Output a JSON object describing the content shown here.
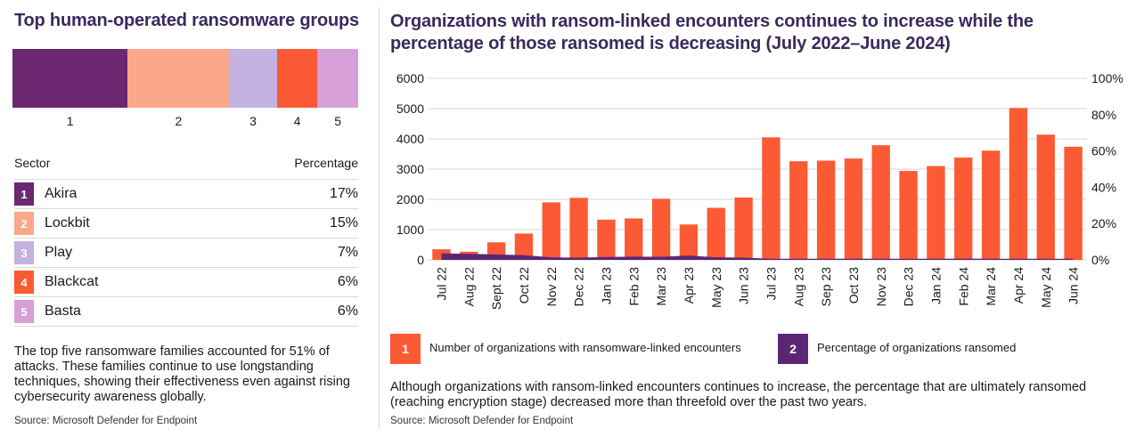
{
  "left": {
    "title": "Top human-operated ransomware groups",
    "table_header": {
      "sector": "Sector",
      "percentage": "Percentage"
    },
    "description": "The top five ransomware families accounted for 51% of attacks. These families continue to use longstanding techniques, showing their effectiveness even against rising cybersecurity awareness globally.",
    "source": "Source: Microsoft Defender for Endpoint"
  },
  "right": {
    "title": "Organizations with ransom-linked encounters continues to increase while the percentage of those ransomed is decreasing (July 2022–June 2024)",
    "description": "Although organizations with ransom-linked encounters continues to increase, the percentage that are ultimately ransomed (reaching encryption stage) decreased more than threefold over the past two years.",
    "source": "Source: Microsoft Defender for Endpoint"
  },
  "colors": {
    "akira": "#6b2770",
    "lockbit": "#fba78a",
    "play": "#c4b2e0",
    "blackcat": "#fb5a34",
    "basta": "#d69fd8",
    "bar": "#fb5a34",
    "area": "#5c2675",
    "title": "#3a2a5c"
  },
  "chart_data": [
    {
      "type": "bar",
      "stacked": true,
      "title": "Top human-operated ransomware groups",
      "categories": [
        "1",
        "2",
        "3",
        "4",
        "5"
      ],
      "series": [
        {
          "name": "Akira",
          "rank": "1",
          "value": 17,
          "display": "17%",
          "color": "#6b2770"
        },
        {
          "name": "Lockbit",
          "rank": "2",
          "value": 15,
          "display": "15%",
          "color": "#fba78a"
        },
        {
          "name": "Play",
          "rank": "3",
          "value": 7,
          "display": "7%",
          "color": "#c4b2e0"
        },
        {
          "name": "Blackcat",
          "rank": "4",
          "value": 6,
          "display": "6%",
          "color": "#fb5a34"
        },
        {
          "name": "Basta",
          "rank": "5",
          "value": 6,
          "display": "6%",
          "color": "#d69fd8"
        }
      ]
    },
    {
      "type": "bar",
      "title": "Organizations with ransom-linked encounters continues to increase while the percentage of those ransomed is decreasing (July 2022–June 2024)",
      "categories": [
        "Jul 22",
        "Aug 22",
        "Sept 22",
        "Oct 22",
        "Nov 22",
        "Dec 22",
        "Jan 23",
        "Feb 23",
        "Mar 23",
        "Apr 23",
        "May 23",
        "Jun 23",
        "Jul 23",
        "Aug 23",
        "Sep 23",
        "Oct 23",
        "Nov 23",
        "Dec 23",
        "Jan 24",
        "Feb 24",
        "Mar 24",
        "Apr 24",
        "May 24",
        "Jun 24"
      ],
      "y_left": {
        "ylim": [
          0,
          6000
        ],
        "ticks": [
          0,
          1000,
          2000,
          3000,
          4000,
          5000,
          6000
        ],
        "tick_labels": [
          "0",
          "1000",
          "2000",
          "3000",
          "4000",
          "5000",
          "6000"
        ]
      },
      "y_right": {
        "ylim": [
          0,
          100
        ],
        "ticks": [
          0,
          20,
          40,
          60,
          80,
          100
        ],
        "tick_labels": [
          "0%",
          "20%",
          "40%",
          "60%",
          "80%",
          "100%"
        ]
      },
      "series": [
        {
          "name": "Number of organizations with ransomware-linked encounters",
          "legend_number": "1",
          "type": "bar",
          "axis": "left",
          "color": "#fb5a34",
          "values": [
            350,
            270,
            580,
            870,
            1900,
            2050,
            1330,
            1370,
            2020,
            1170,
            1720,
            2060,
            4050,
            3260,
            3280,
            3350,
            3790,
            2940,
            3100,
            3380,
            3610,
            5020,
            4140,
            3740
          ]
        },
        {
          "name": "Percentage of organizations ransomed",
          "legend_number": "2",
          "type": "area",
          "axis": "right",
          "color": "#5c2675",
          "values": [
            3.6,
            3.4,
            3.0,
            2.6,
            1.4,
            1.2,
            1.6,
            1.8,
            1.7,
            2.4,
            1.4,
            1.2,
            0.6,
            0.6,
            0.6,
            0.7,
            0.6,
            0.6,
            0.6,
            0.7,
            0.6,
            0.6,
            0.6,
            0.6
          ]
        }
      ],
      "grid": "horizontal",
      "legend": "bottom"
    }
  ]
}
